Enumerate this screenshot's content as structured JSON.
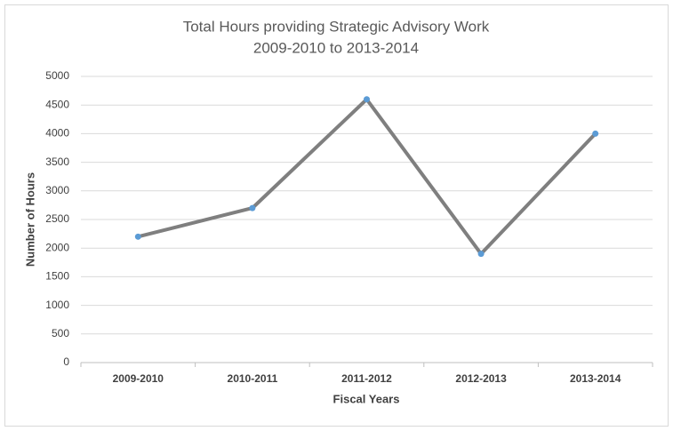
{
  "chart_data": {
    "type": "line",
    "title": "Total Hours providing Strategic Advisory Work",
    "subtitle": "2009-2010 to 2013-2014",
    "x_label": "Fiscal Years",
    "y_label": "Number of Hours",
    "categories": [
      "2009-2010",
      "2010-2011",
      "2011-2012",
      "2012-2013",
      "2013-2014"
    ],
    "values": [
      2200,
      2700,
      4600,
      1900,
      4000
    ],
    "color": "#7f7f7f",
    "marker_color": "#5b9bd5",
    "ylim": [
      0,
      5000
    ],
    "yticks": [
      0,
      500,
      1000,
      1500,
      2000,
      2500,
      3000,
      3500,
      4000,
      4500,
      5000
    ],
    "grid": true
  }
}
